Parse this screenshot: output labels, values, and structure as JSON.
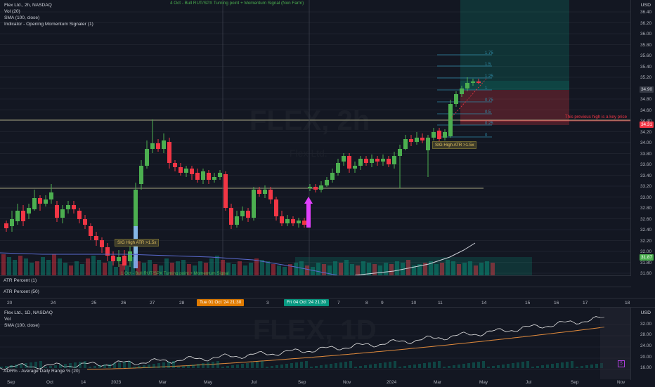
{
  "top_chart": {
    "legend": {
      "symbol_line": "Flex Ltd., 2h, NASDAQ",
      "vol_line": "Vol (20)",
      "sma_line": "SMA (100, close)",
      "indicator_line": "Indicator - Opening Momentum Signaler (1)"
    },
    "top_annotation": "4 Oct - Bull RUT/SPX Turning point + Momentum Signal (Non Farm)",
    "bottom_annotation": "1 Oct - Bull RUT/SPX Turning point + Momentum Signal",
    "watermark": "FLEX, 2h",
    "watermark_sub": "Flex Ltd.",
    "signal_label_1": "SIG High ATR >1.5x",
    "signal_label_2": "SIG High ATR >1.5x",
    "key_price_note": "This previous high is a key price",
    "fib_levels": [
      "1.75",
      "1.5",
      "1.25",
      "1",
      "0.75",
      "0.5",
      "0.25",
      "0"
    ],
    "price_axis": {
      "currency": "USD",
      "labels": [
        "36.40",
        "36.20",
        "36.00",
        "35.80",
        "35.60",
        "35.40",
        "35.20",
        "35.00",
        "34.80",
        "34.60",
        "34.40",
        "34.20",
        "34.00",
        "33.80",
        "33.60",
        "33.40",
        "33.20",
        "33.00",
        "32.80",
        "32.60",
        "32.40",
        "32.20",
        "32.00",
        "31.80",
        "31.60"
      ],
      "tag_current": "34.90",
      "tag_key": "34.31",
      "tag_sma": "31.87"
    },
    "atr_panels": [
      "ATR Percent (1)",
      "ATR Percent (50)"
    ],
    "time_axis": [
      "20",
      "24",
      "25",
      "26",
      "27",
      "28",
      "2",
      "3",
      "7",
      "8",
      "9",
      "10",
      "11",
      "14",
      "15",
      "16",
      "17",
      "18",
      "21"
    ],
    "date_chip_1": "Tue 01 Oct '24   21:30",
    "date_chip_2": "Fri 04 Oct '24   21:30",
    "colors": {
      "up": "#4caf50",
      "down": "#f23645",
      "arrow": "#e040fb",
      "sma": "#5b6bd0"
    }
  },
  "bottom_chart": {
    "legend": {
      "symbol_line": "Flex Ltd., 1D, NASDAQ",
      "vol_line": "Vol",
      "sma_line": "SMA (100, close)"
    },
    "watermark": "FLEX, 1D",
    "adr_label": "ADR% - Average Daily Range % (20)",
    "adr_badge": "5",
    "price_axis": {
      "currency": "USD",
      "labels": [
        "32.00",
        "28.00",
        "24.00",
        "20.00",
        "16.00"
      ]
    },
    "time_axis": [
      "Sep",
      "Oct",
      "14",
      "2023",
      "Mar",
      "May",
      "Jul",
      "Sep",
      "Nov",
      "2024",
      "Mar",
      "May",
      "Jul",
      "Sep",
      "Nov"
    ]
  }
}
